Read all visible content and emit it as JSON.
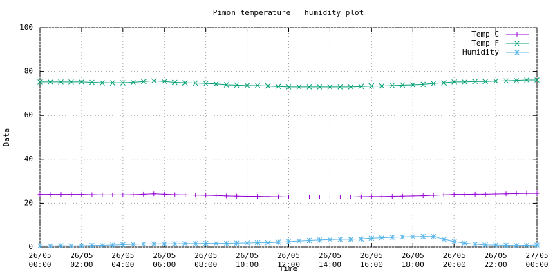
{
  "chart_data": {
    "type": "line",
    "title": "Pimon temperature   humidity plot",
    "x_label": "Time",
    "y_label": "Data",
    "x": [
      0,
      0.5,
      1,
      1.5,
      2,
      2.5,
      3,
      3.5,
      4,
      4.5,
      5,
      5.5,
      6,
      6.5,
      7,
      7.5,
      8,
      8.5,
      9,
      9.5,
      10,
      10.5,
      11,
      11.5,
      12,
      12.5,
      13,
      13.5,
      14,
      14.5,
      15,
      15.5,
      16,
      16.5,
      17,
      17.5,
      18,
      18.5,
      19,
      19.5,
      20,
      20.5,
      21,
      21.5,
      22,
      22.5,
      23,
      23.5,
      24
    ],
    "xlim": [
      0,
      24
    ],
    "xticks": [
      {
        "value": 0,
        "label": "26/05\n00:00"
      },
      {
        "value": 2,
        "label": "26/05\n02:00"
      },
      {
        "value": 4,
        "label": "26/05\n04:00"
      },
      {
        "value": 6,
        "label": "26/05\n06:00"
      },
      {
        "value": 8,
        "label": "26/05\n08:00"
      },
      {
        "value": 10,
        "label": "26/05\n10:00"
      },
      {
        "value": 12,
        "label": "26/05\n12:00"
      },
      {
        "value": 14,
        "label": "26/05\n14:00"
      },
      {
        "value": 16,
        "label": "26/05\n16:00"
      },
      {
        "value": 18,
        "label": "26/05\n18:00"
      },
      {
        "value": 20,
        "label": "26/05\n20:00"
      },
      {
        "value": 22,
        "label": "26/05\n22:00"
      },
      {
        "value": 24,
        "label": "27/05\n00:00"
      }
    ],
    "ylim": [
      0,
      100
    ],
    "yticks": [
      0,
      20,
      40,
      60,
      80,
      100
    ],
    "grid": true,
    "legend": "top-right",
    "series": [
      {
        "name": "Temp C",
        "color": "#9400d3",
        "marker": "plus",
        "values": [
          24.0,
          24.0,
          24.0,
          24.0,
          24.0,
          23.9,
          23.8,
          23.8,
          23.8,
          23.9,
          24.1,
          24.3,
          24.1,
          23.9,
          23.8,
          23.7,
          23.6,
          23.5,
          23.3,
          23.2,
          23.1,
          23.1,
          23.0,
          22.9,
          22.8,
          22.8,
          22.8,
          22.8,
          22.8,
          22.8,
          22.8,
          22.9,
          23.0,
          23.0,
          23.1,
          23.2,
          23.3,
          23.4,
          23.6,
          23.8,
          24.0,
          24.0,
          24.1,
          24.1,
          24.2,
          24.3,
          24.4,
          24.5,
          24.5
        ]
      },
      {
        "name": "Temp F",
        "color": "#009e73",
        "marker": "cross",
        "values": [
          75.2,
          75.2,
          75.2,
          75.2,
          75.2,
          75.0,
          74.8,
          74.8,
          74.8,
          75.0,
          75.4,
          75.7,
          75.4,
          75.0,
          74.8,
          74.7,
          74.5,
          74.3,
          73.9,
          73.8,
          73.6,
          73.6,
          73.4,
          73.2,
          73.0,
          73.0,
          73.0,
          73.0,
          73.0,
          73.0,
          73.0,
          73.2,
          73.4,
          73.4,
          73.6,
          73.8,
          73.9,
          74.1,
          74.5,
          74.8,
          75.2,
          75.2,
          75.4,
          75.4,
          75.6,
          75.7,
          75.9,
          76.1,
          76.1
        ]
      },
      {
        "name": "Humidity",
        "color": "#56b4e9",
        "marker": "star",
        "values": [
          0.5,
          0.5,
          0.6,
          0.5,
          0.6,
          0.7,
          0.8,
          0.9,
          1.1,
          1.3,
          1.4,
          1.5,
          1.5,
          1.5,
          1.6,
          1.6,
          1.7,
          1.7,
          1.7,
          1.8,
          1.9,
          2.0,
          2.0,
          2.2,
          2.5,
          2.8,
          3.0,
          3.2,
          3.4,
          3.5,
          3.5,
          3.7,
          4.0,
          4.2,
          4.4,
          4.6,
          4.7,
          4.8,
          4.8,
          3.5,
          2.5,
          1.8,
          1.3,
          1.0,
          0.9,
          0.8,
          0.7,
          0.8,
          0.9
        ]
      }
    ]
  }
}
